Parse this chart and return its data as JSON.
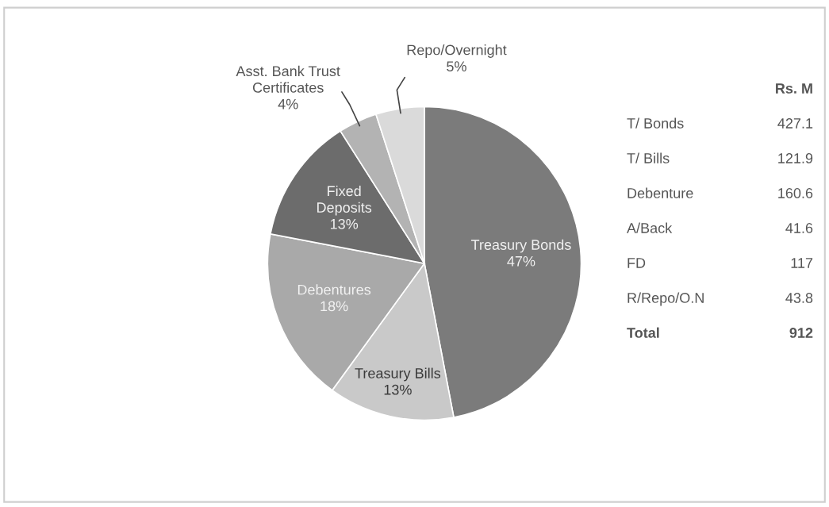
{
  "chart_data": {
    "type": "pie",
    "categories": [
      "Treasury Bonds",
      "Treasury Bills",
      "Debentures",
      "Fixed\nDeposits",
      "Asst. Bank Trust\nCertificates",
      "Repo/Overnight"
    ],
    "values": [
      47,
      13,
      18,
      13,
      4,
      5
    ],
    "value_labels": [
      "47%",
      "13%",
      "18%",
      "13%",
      "4%",
      "5%"
    ],
    "colors": [
      "#7b7b7b",
      "#c9c9c9",
      "#a9a9a9",
      "#6c6c6c",
      "#b3b3b3",
      "#dadada"
    ],
    "legend": false,
    "annotations": [
      "Rs. M",
      "T/ Bonds",
      "427.1",
      "T/ Bills",
      "121.9",
      "Debenture",
      "160.6",
      "A/Back",
      "41.6",
      "FD",
      "117",
      "R/Repo/O.N",
      "43.8",
      "Total",
      "912"
    ]
  }
}
